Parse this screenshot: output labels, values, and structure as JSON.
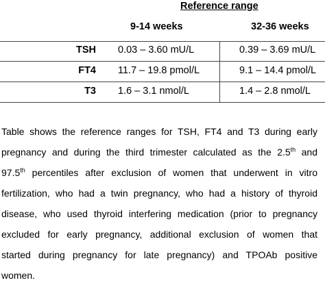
{
  "table": {
    "group_header": "Reference range",
    "columns": [
      "9-14 weeks",
      "32-36 weeks"
    ],
    "rows": [
      [
        "TSH",
        "0.03 – 3.60 mU/L",
        "0.39 – 3.69 mU/L"
      ],
      [
        "FT4",
        "11.7 – 19.8 pmol/L",
        "9.1 – 14.4 pmol/L"
      ],
      [
        "T3",
        "1.6 – 3.1 nmol/L",
        "1.4 – 2.8 nmol/L"
      ]
    ]
  },
  "caption": {
    "lines": [
      [
        {
          "text": "Table shows the reference ranges for TSH, FT4 and T3 during early"
        }
      ],
      [
        {
          "text": "pregnancy and during the third trimester calculated as the 2.5"
        },
        {
          "sup": "th"
        },
        {
          "text": " and"
        }
      ],
      [
        {
          "text": "97.5"
        },
        {
          "sup": "th"
        },
        {
          "text": " percentiles after exclusion of women that underwent in vitro"
        }
      ],
      [
        {
          "text": "fertilization, who had a twin pregnancy, who had a history of thyroid"
        }
      ],
      [
        {
          "text": "disease, who used thyroid interfering medication (prior to pregnancy"
        }
      ],
      [
        {
          "text": "excluded for early pregnancy, additional exclusion of women that"
        }
      ],
      [
        {
          "text": "started during pregnancy for late pregnancy) and TPOAb positive"
        }
      ],
      [
        {
          "text": "women."
        }
      ]
    ]
  }
}
